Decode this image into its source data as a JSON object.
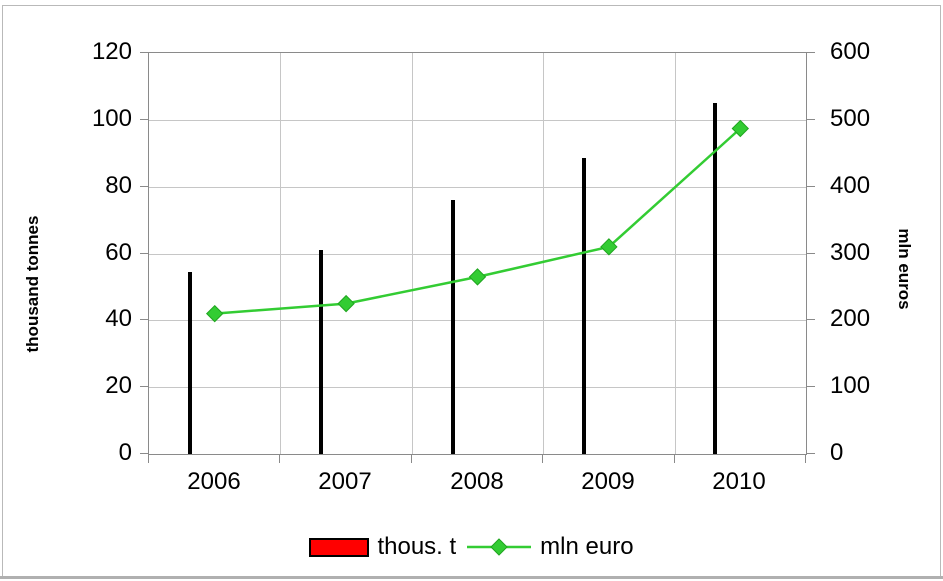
{
  "chart_data": {
    "type": "combo",
    "categories": [
      "2006",
      "2007",
      "2008",
      "2009",
      "2010"
    ],
    "series": [
      {
        "name": "thous. t",
        "type": "bar",
        "axis": "left",
        "color": "#ff0000",
        "border_color": "#000000",
        "values": [
          54.5,
          61,
          76,
          88.5,
          105
        ]
      },
      {
        "name": "mln euro",
        "type": "line",
        "axis": "right",
        "color": "#33cc33",
        "marker": "diamond",
        "marker_color": "#33cc33",
        "values": [
          210,
          225,
          265,
          310,
          487
        ]
      }
    ],
    "left_axis": {
      "label": "thousand tonnes",
      "min": 0,
      "max": 120,
      "step": 20,
      "ticks": [
        "0",
        "20",
        "40",
        "60",
        "80",
        "100",
        "120"
      ]
    },
    "right_axis": {
      "label": "mln euros",
      "min": 0,
      "max": 600,
      "step": 100,
      "ticks": [
        "0",
        "100",
        "200",
        "300",
        "400",
        "500",
        "600"
      ]
    },
    "legend": {
      "position": "bottom",
      "items": [
        {
          "label": "thous. t",
          "swatch": "bar",
          "color": "#ff0000"
        },
        {
          "label": "mln euro",
          "swatch": "line-diamond",
          "color": "#33cc33"
        }
      ]
    },
    "grid": {
      "horizontal": true,
      "vertical": true,
      "color": "#c6c6c6"
    },
    "axis_color": "#8a8a8a",
    "text_color": "#000000"
  }
}
